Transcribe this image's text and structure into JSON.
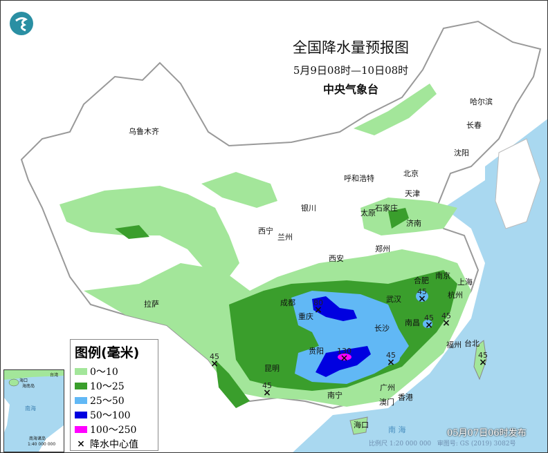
{
  "header": {
    "title": "全国降水量预报图",
    "period": "5月9日08时—10日08时",
    "agency": "中央气象台",
    "logo_icon": "cma-logo"
  },
  "legend": {
    "title": "图例(毫米)",
    "items": [
      {
        "label": "0～10",
        "color": "#a3e69a"
      },
      {
        "label": "10～25",
        "color": "#3a9e2c"
      },
      {
        "label": "25～50",
        "color": "#61b8f5"
      },
      {
        "label": "50～100",
        "color": "#0000e0"
      },
      {
        "label": "100～250",
        "color": "#ff00ff"
      }
    ],
    "center_label": "降水中心值"
  },
  "cities": [
    "乌鲁木齐",
    "哈尔滨",
    "长春",
    "沈阳",
    "北京",
    "天津",
    "呼和浩特",
    "石家庄",
    "太原",
    "济南",
    "银川",
    "西宁",
    "兰州",
    "郑州",
    "西安",
    "合肥",
    "南京",
    "上海",
    "杭州",
    "武汉",
    "成都",
    "重庆",
    "长沙",
    "南昌",
    "拉萨",
    "贵阳",
    "昆明",
    "福州",
    "台北",
    "南宁",
    "广州",
    "澳门",
    "香港",
    "海口"
  ],
  "centers": [
    "80",
    "130",
    "45",
    "45",
    "45",
    "45",
    "45",
    "45",
    "45"
  ],
  "inset": {
    "sea": "南海",
    "haikou": "海口",
    "hainan": "海南岛",
    "taiwan": "台湾",
    "islands": "南海诸岛",
    "scale": "1:40 000 000"
  },
  "sea_label": "南 海",
  "footer": {
    "issued": "05月07日06时发布",
    "scale": "比例尺 1:20 000 000",
    "map_no": "审图号: GS (2019) 3082号"
  }
}
